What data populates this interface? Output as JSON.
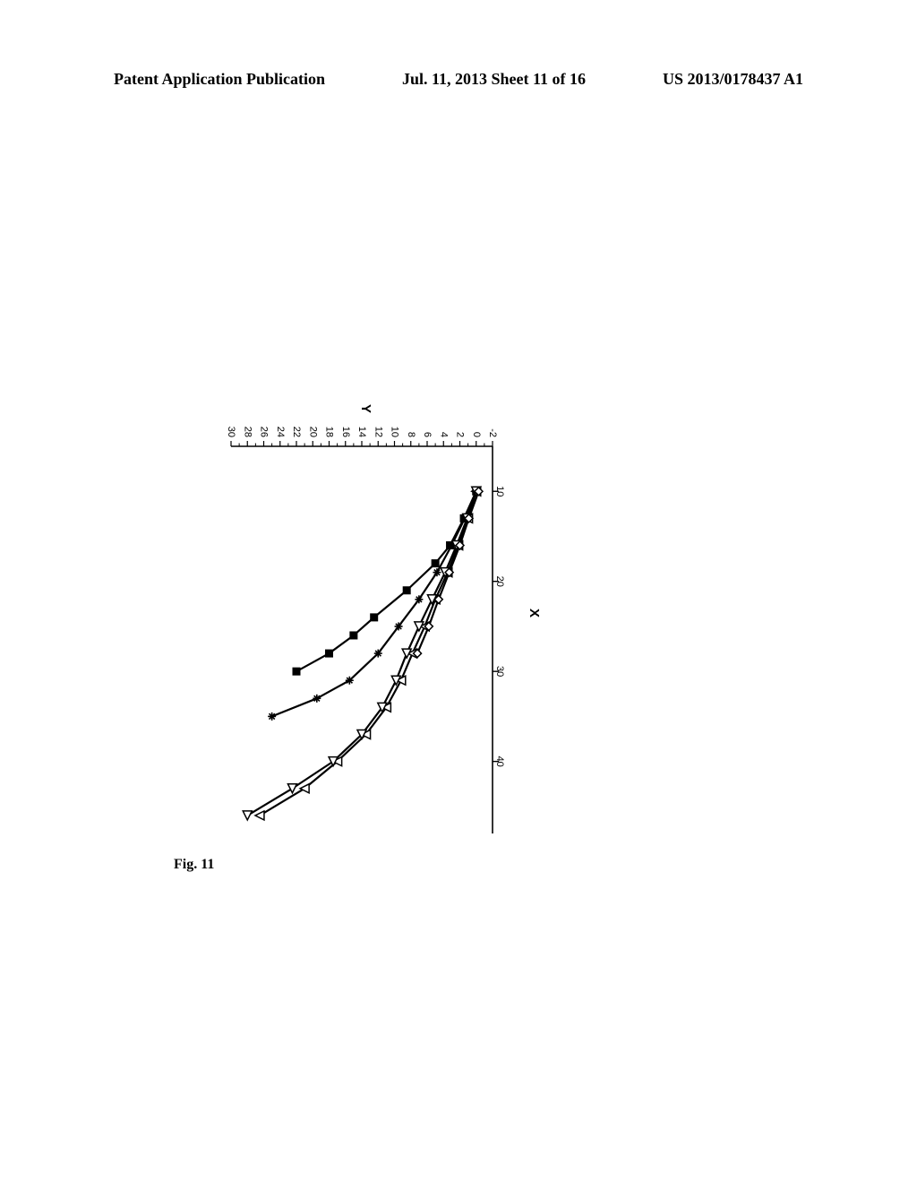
{
  "header": {
    "left": "Patent Application Publication",
    "center": "Jul. 11, 2013  Sheet 11 of 16",
    "right": "US 2013/0178437 A1"
  },
  "figure_label": "Fig. 11",
  "chart": {
    "type": "line",
    "rotation_deg": 90,
    "background_color": "#ffffff",
    "axis_color": "#000000",
    "line_color": "#000000",
    "line_width": 2.2,
    "font_family": "Arial, sans-serif",
    "tick_fontsize": 11,
    "axis_label_fontsize": 15,
    "xlabel": "X",
    "ylabel": "Y",
    "xlim": [
      5,
      48
    ],
    "ylim": [
      -2,
      30
    ],
    "x_ticks": [
      10,
      20,
      30,
      40
    ],
    "y_ticks": [
      -2,
      0,
      2,
      4,
      6,
      8,
      10,
      12,
      14,
      16,
      18,
      20,
      22,
      24,
      26,
      28,
      30
    ],
    "x_tick_major": true,
    "y_tick_minor_between": 1,
    "series": [
      {
        "id": "s1",
        "marker": "filled-square",
        "marker_size": 8,
        "marker_fill": "#000000",
        "marker_stroke": "#000000",
        "points": [
          [
            10,
            0
          ],
          [
            13,
            1.5
          ],
          [
            16,
            3.2
          ],
          [
            18,
            5.0
          ],
          [
            21,
            8.5
          ],
          [
            24,
            12.5
          ],
          [
            26,
            15.0
          ],
          [
            28,
            18.0
          ],
          [
            30,
            22.0
          ]
        ]
      },
      {
        "id": "s2",
        "marker": "star",
        "marker_size": 9,
        "marker_fill": "#000000",
        "marker_stroke": "#000000",
        "points": [
          [
            10,
            0
          ],
          [
            13,
            1.4
          ],
          [
            16,
            3.0
          ],
          [
            19,
            4.8
          ],
          [
            22,
            7.0
          ],
          [
            25,
            9.5
          ],
          [
            28,
            12.0
          ],
          [
            31,
            15.5
          ],
          [
            33,
            19.5
          ],
          [
            35,
            25.0
          ]
        ]
      },
      {
        "id": "s3",
        "marker": "open-triangle-up",
        "marker_size": 10,
        "marker_fill": "#ffffff",
        "marker_stroke": "#000000",
        "points": [
          [
            10,
            0
          ],
          [
            13,
            1.0
          ],
          [
            16,
            2.2
          ],
          [
            19,
            3.5
          ],
          [
            22,
            5.0
          ],
          [
            25,
            6.3
          ],
          [
            28,
            7.8
          ],
          [
            31,
            9.2
          ],
          [
            34,
            11.0
          ],
          [
            37,
            13.5
          ],
          [
            40,
            17.0
          ],
          [
            43,
            21.0
          ],
          [
            46,
            26.5
          ]
        ]
      },
      {
        "id": "s4",
        "marker": "open-triangle-right",
        "marker_size": 10,
        "marker_fill": "#ffffff",
        "marker_stroke": "#000000",
        "points": [
          [
            10,
            0
          ],
          [
            13,
            1.1
          ],
          [
            16,
            2.4
          ],
          [
            19,
            3.8
          ],
          [
            22,
            5.4
          ],
          [
            25,
            7.0
          ],
          [
            28,
            8.5
          ],
          [
            31,
            9.8
          ],
          [
            34,
            11.5
          ],
          [
            37,
            14.0
          ],
          [
            40,
            17.5
          ],
          [
            43,
            22.5
          ],
          [
            46,
            28.0
          ]
        ]
      },
      {
        "id": "s5",
        "marker": "open-diamond",
        "marker_size": 9,
        "marker_fill": "#ffffff",
        "marker_stroke": "#000000",
        "points": [
          [
            10,
            -0.3
          ],
          [
            13,
            0.9
          ],
          [
            16,
            2.0
          ],
          [
            19,
            3.3
          ],
          [
            22,
            4.6
          ],
          [
            25,
            5.8
          ],
          [
            28,
            7.2
          ]
        ]
      }
    ]
  }
}
